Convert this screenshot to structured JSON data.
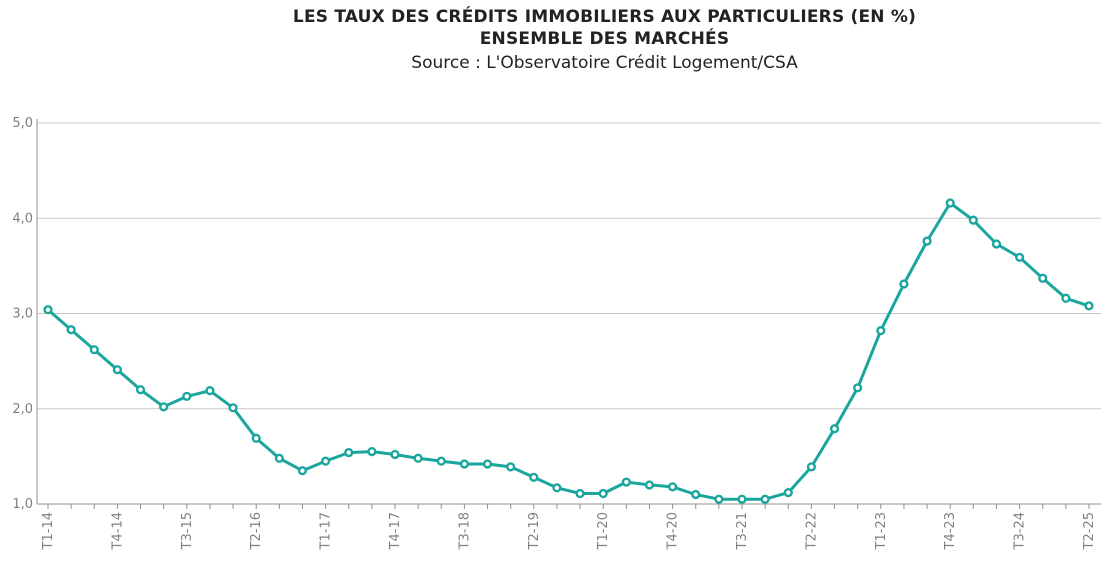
{
  "header": {
    "title_line1": "LES TAUX DES CRÉDITS IMMOBILIERS AUX PARTICULIERS (EN %)",
    "title_line2": "ENSEMBLE DES MARCHÉS",
    "source": "Source : L'Observatoire Crédit Logement/CSA"
  },
  "colors": {
    "series": "#1aa69c",
    "grid": "#c8c8c8",
    "axis": "#909090",
    "tick_text": "#808080"
  },
  "chart_data": {
    "type": "line",
    "title": "LES TAUX DES CRÉDITS IMMOBILIERS AUX PARTICULIERS (EN %) — ENSEMBLE DES MARCHÉS",
    "subtitle": "Source : L'Observatoire Crédit Logement/CSA",
    "xlabel": "",
    "ylabel": "",
    "ylim": [
      1.0,
      5.0
    ],
    "yticks": [
      1.0,
      2.0,
      3.0,
      4.0,
      5.0
    ],
    "ytick_labels": [
      "1,0",
      "2,0",
      "3,0",
      "4,0",
      "5,0"
    ],
    "grid": true,
    "categories": [
      "T1-14",
      "T2-14",
      "T3-14",
      "T4-14",
      "T1-15",
      "T2-15",
      "T3-15",
      "T4-15",
      "T1-16",
      "T2-16",
      "T3-16",
      "T4-16",
      "T1-17",
      "T2-17",
      "T3-17",
      "T4-17",
      "T1-18",
      "T2-18",
      "T3-18",
      "T4-18",
      "T1-19",
      "T2-19",
      "T3-19",
      "T4-19",
      "T1-20",
      "T2-20",
      "T3-20",
      "T4-20",
      "T1-21",
      "T2-21",
      "T3-21",
      "T4-21",
      "T1-22",
      "T2-22",
      "T3-22",
      "T4-22",
      "T1-23",
      "T2-23",
      "T3-23",
      "T4-23",
      "T1-24",
      "T2-24",
      "T3-24",
      "T4-24",
      "T1-25",
      "T2-25"
    ],
    "xtick_labels_shown": [
      "T1-14",
      "T4-14",
      "T3-15",
      "T2-16",
      "T1-17",
      "T4-17",
      "T3-18",
      "T2-19",
      "T1-20",
      "T4-20",
      "T3-21",
      "T2-22",
      "T1-23",
      "T4-23",
      "T3-24",
      "T2-25"
    ],
    "series": [
      {
        "name": "Ensemble des marchés",
        "values": [
          3.04,
          2.83,
          2.62,
          2.41,
          2.2,
          2.02,
          2.13,
          2.19,
          2.01,
          1.69,
          1.48,
          1.35,
          1.45,
          1.54,
          1.55,
          1.52,
          1.48,
          1.45,
          1.42,
          1.42,
          1.39,
          1.28,
          1.17,
          1.11,
          1.11,
          1.23,
          1.2,
          1.18,
          1.1,
          1.05,
          1.05,
          1.05,
          1.12,
          1.39,
          1.79,
          2.22,
          2.82,
          3.31,
          3.76,
          4.16,
          3.98,
          3.73,
          3.59,
          3.37,
          3.16,
          3.08
        ]
      }
    ]
  }
}
